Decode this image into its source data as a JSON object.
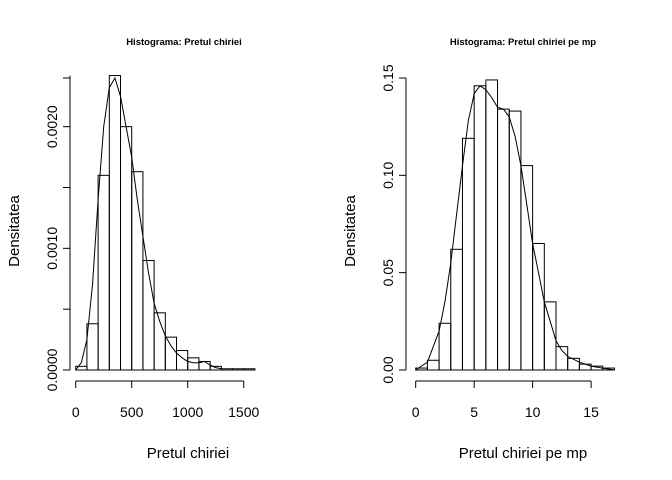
{
  "chart_data": [
    {
      "type": "bar",
      "title": "Histograma: Pretul chiriei",
      "xlabel": "Pretul chiriei",
      "ylabel": "Densitatea",
      "xlim": [
        -60,
        1940
      ],
      "ylim": [
        0,
        0.0024
      ],
      "x_ticks": [
        0,
        500,
        1000,
        1500
      ],
      "x_tick_labels": [
        "0",
        "500",
        "1000",
        "1500"
      ],
      "y_ticks": [
        0,
        0.001,
        0.002
      ],
      "y_tick_labels": [
        "0.0000",
        "0.0010",
        "0.0020"
      ],
      "bin_width": 100,
      "bin_starts": [
        0,
        100,
        200,
        300,
        400,
        500,
        600,
        700,
        800,
        900,
        1000,
        1100,
        1200,
        1300,
        1400,
        1500
      ],
      "values": [
        3e-05,
        0.00038,
        0.0016,
        0.00242,
        0.002,
        0.00163,
        0.0009,
        0.00047,
        0.00027,
        0.00016,
        0.0001,
        7e-05,
        3e-05,
        1e-05,
        1e-05,
        1e-05
      ],
      "density_line": {
        "x": [
          0,
          50,
          100,
          150,
          200,
          250,
          300,
          350,
          400,
          450,
          500,
          550,
          600,
          650,
          700,
          750,
          800,
          850,
          900,
          950,
          1000,
          1050,
          1100,
          1150,
          1200,
          1250,
          1300
        ],
        "y": [
          0,
          6e-05,
          0.00025,
          0.0007,
          0.0014,
          0.002,
          0.00232,
          0.0024,
          0.00225,
          0.002,
          0.00175,
          0.0014,
          0.0011,
          0.0008,
          0.00055,
          0.0004,
          0.00028,
          0.0002,
          0.00014,
          0.0001,
          7e-05,
          6e-05,
          6e-05,
          7e-05,
          4e-05,
          2e-05,
          1e-05
        ]
      }
    },
    {
      "type": "bar",
      "title": "Histograma: Pretul chiriei pe mp",
      "xlabel": "Pretul chiriei pe mp",
      "ylabel": "Densitatea",
      "xlim": [
        -1,
        18.5
      ],
      "ylim": [
        0,
        0.15
      ],
      "x_ticks": [
        0,
        5,
        10,
        15
      ],
      "x_tick_labels": [
        "0",
        "5",
        "10",
        "15"
      ],
      "y_ticks": [
        0,
        0.05,
        0.1,
        0.15
      ],
      "y_tick_labels": [
        "0.00",
        "0.05",
        "0.10",
        "0.15"
      ],
      "bin_width": 1,
      "bin_starts": [
        0,
        1,
        2,
        3,
        4,
        5,
        6,
        7,
        8,
        9,
        10,
        11,
        12,
        13,
        14,
        15,
        16
      ],
      "values": [
        0.001,
        0.005,
        0.024,
        0.062,
        0.119,
        0.146,
        0.149,
        0.134,
        0.133,
        0.105,
        0.065,
        0.035,
        0.012,
        0.006,
        0.003,
        0.002,
        0.001
      ],
      "density_line": {
        "x": [
          0,
          1,
          2,
          2.5,
          3,
          3.5,
          4,
          4.5,
          5,
          5.5,
          6,
          6.5,
          7,
          7.5,
          8,
          8.5,
          9,
          9.5,
          10,
          10.5,
          11,
          11.5,
          12,
          12.5,
          13,
          14,
          15,
          16,
          17
        ],
        "y": [
          0,
          0.004,
          0.02,
          0.035,
          0.055,
          0.08,
          0.105,
          0.128,
          0.142,
          0.146,
          0.144,
          0.14,
          0.135,
          0.134,
          0.13,
          0.12,
          0.105,
          0.085,
          0.065,
          0.05,
          0.035,
          0.025,
          0.015,
          0.01,
          0.007,
          0.004,
          0.002,
          0.001,
          0
        ]
      }
    }
  ]
}
